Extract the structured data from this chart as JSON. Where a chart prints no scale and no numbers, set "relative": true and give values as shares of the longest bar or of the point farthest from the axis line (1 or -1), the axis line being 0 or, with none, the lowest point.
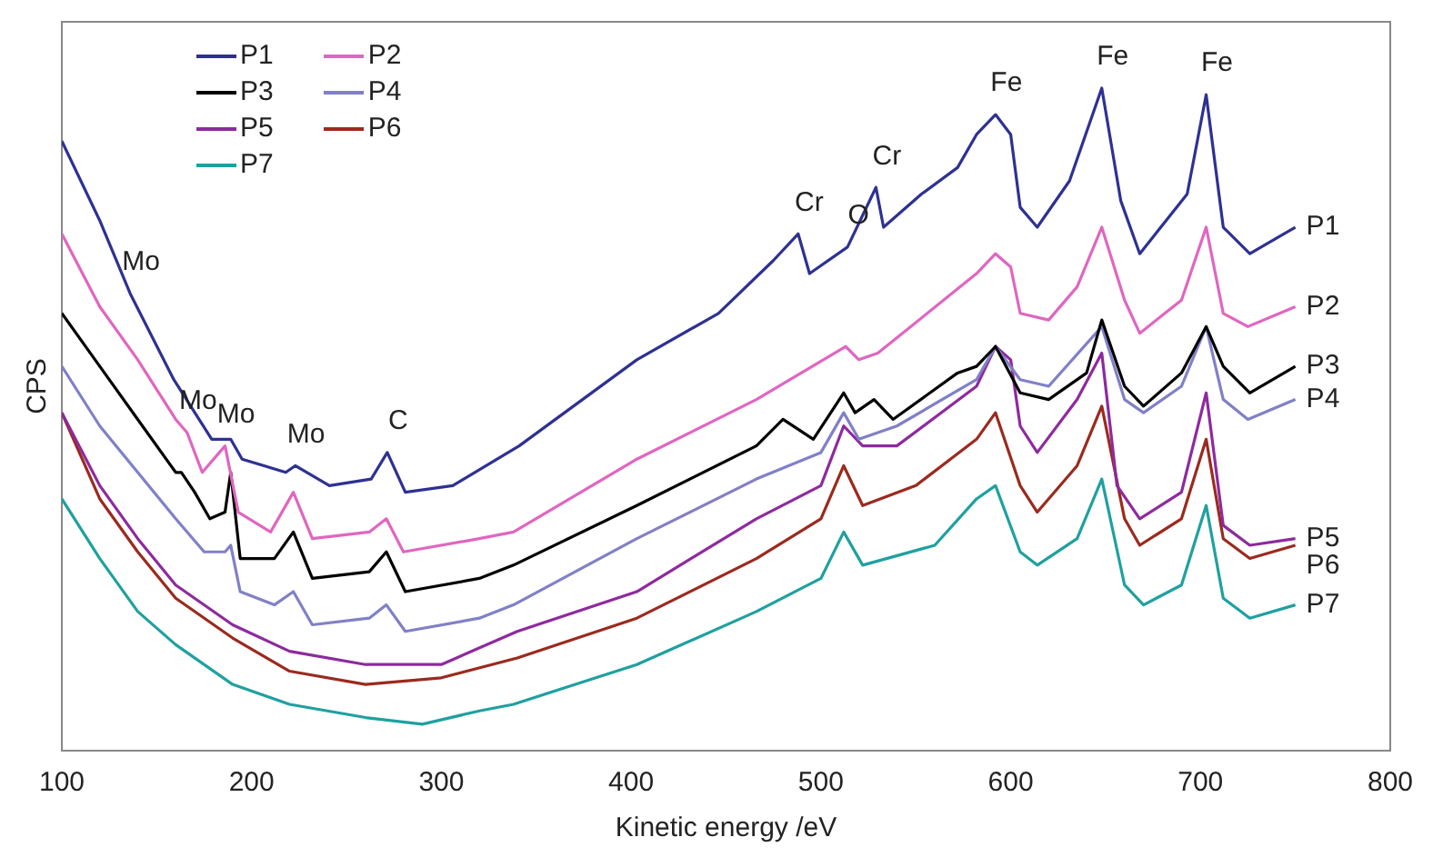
{
  "chart_data": {
    "type": "line",
    "relative": true,
    "xlabel": "Kinetic energy /eV",
    "ylabel": "CPS",
    "xlim": [
      100,
      800
    ],
    "xticks": [
      100,
      200,
      300,
      400,
      500,
      600,
      700,
      800
    ],
    "grid": false,
    "legend": "top left",
    "marker": "none",
    "line_style": "solid",
    "annotations": [
      {
        "text": "Mo",
        "x": 136,
        "y": 0.69
      },
      {
        "text": "Mo",
        "x": 166,
        "y": 0.48
      },
      {
        "text": "Mo",
        "x": 186,
        "y": 0.46
      },
      {
        "text": "Mo",
        "x": 223,
        "y": 0.43
      },
      {
        "text": "C",
        "x": 271.5,
        "y": 0.45
      },
      {
        "text": "Cr",
        "x": 488,
        "y": 0.78
      },
      {
        "text": "O",
        "x": 514,
        "y": 0.76
      },
      {
        "text": "Cr",
        "x": 529,
        "y": 0.85
      },
      {
        "text": "Fe",
        "x": 592,
        "y": 0.96
      },
      {
        "text": "Fe",
        "x": 648,
        "y": 1.0
      },
      {
        "text": "Fe",
        "x": 703,
        "y": 0.99
      }
    ],
    "series": [
      {
        "name": "P1",
        "color": "#2e3192",
        "x": [
          100,
          120,
          136,
          159,
          179,
          189,
          195,
          218,
          223,
          241,
          263,
          271.5,
          281,
          306,
          341,
          403,
          446,
          475,
          488,
          494,
          514,
          529,
          533,
          553,
          572,
          582,
          592,
          600,
          605,
          614,
          631,
          648,
          658,
          668,
          693,
          703,
          712,
          726,
          750
        ],
        "values": [
          0.92,
          0.8,
          0.69,
          0.56,
          0.47,
          0.47,
          0.44,
          0.42,
          0.43,
          0.4,
          0.41,
          0.45,
          0.39,
          0.4,
          0.46,
          0.59,
          0.66,
          0.74,
          0.78,
          0.72,
          0.76,
          0.85,
          0.79,
          0.84,
          0.88,
          0.93,
          0.96,
          0.93,
          0.82,
          0.79,
          0.86,
          1.0,
          0.83,
          0.75,
          0.84,
          0.99,
          0.79,
          0.75,
          0.79
        ]
      },
      {
        "name": "P2",
        "color": "#e066c0",
        "x": [
          100,
          120,
          140,
          160,
          166,
          174,
          186,
          193,
          210,
          222,
          232,
          262,
          271,
          280,
          320,
          338,
          403,
          466,
          513,
          520,
          530,
          582,
          592,
          600,
          605,
          620,
          635,
          648,
          660,
          668,
          690,
          703,
          712,
          725,
          750
        ],
        "values": [
          0.78,
          0.67,
          0.59,
          0.5,
          0.48,
          0.42,
          0.46,
          0.36,
          0.33,
          0.39,
          0.32,
          0.33,
          0.35,
          0.3,
          0.32,
          0.33,
          0.44,
          0.53,
          0.61,
          0.59,
          0.6,
          0.72,
          0.75,
          0.73,
          0.66,
          0.65,
          0.7,
          0.79,
          0.68,
          0.63,
          0.68,
          0.79,
          0.66,
          0.64,
          0.67
        ]
      },
      {
        "name": "P3",
        "color": "#000000",
        "x": [
          100,
          120,
          140,
          160,
          163,
          170,
          178,
          186,
          189,
          194,
          212,
          222,
          232,
          262,
          271,
          281,
          320,
          338,
          403,
          466,
          480,
          496,
          512,
          518,
          528,
          538,
          572,
          582,
          592,
          605,
          620,
          640,
          648,
          660,
          670,
          690,
          703,
          712,
          726,
          750
        ],
        "values": [
          0.66,
          0.58,
          0.5,
          0.42,
          0.42,
          0.39,
          0.35,
          0.36,
          0.42,
          0.29,
          0.29,
          0.33,
          0.26,
          0.27,
          0.3,
          0.24,
          0.26,
          0.28,
          0.37,
          0.46,
          0.5,
          0.47,
          0.54,
          0.51,
          0.53,
          0.5,
          0.57,
          0.58,
          0.61,
          0.54,
          0.53,
          0.57,
          0.65,
          0.55,
          0.52,
          0.57,
          0.64,
          0.58,
          0.54,
          0.58
        ]
      },
      {
        "name": "P4",
        "color": "#8080c8",
        "x": [
          100,
          120,
          140,
          160,
          175,
          186,
          189,
          194,
          212,
          222,
          232,
          262,
          271,
          281,
          320,
          338,
          403,
          466,
          500,
          512,
          520,
          540,
          582,
          592,
          605,
          620,
          648,
          660,
          670,
          690,
          703,
          712,
          725,
          750
        ],
        "values": [
          0.58,
          0.49,
          0.42,
          0.35,
          0.3,
          0.3,
          0.31,
          0.24,
          0.22,
          0.24,
          0.19,
          0.2,
          0.22,
          0.18,
          0.2,
          0.22,
          0.32,
          0.41,
          0.45,
          0.51,
          0.47,
          0.49,
          0.56,
          0.61,
          0.56,
          0.55,
          0.64,
          0.53,
          0.51,
          0.55,
          0.64,
          0.53,
          0.5,
          0.53
        ]
      },
      {
        "name": "P5",
        "color": "#8e2a9e",
        "x": [
          100,
          120,
          140,
          160,
          190,
          220,
          260,
          300,
          340,
          403,
          466,
          500,
          512,
          522,
          540,
          582,
          592,
          600,
          605,
          614,
          635,
          648,
          656,
          668,
          690,
          703,
          712,
          726,
          750
        ],
        "values": [
          0.51,
          0.4,
          0.32,
          0.25,
          0.19,
          0.15,
          0.13,
          0.13,
          0.18,
          0.24,
          0.35,
          0.4,
          0.49,
          0.46,
          0.46,
          0.55,
          0.61,
          0.59,
          0.49,
          0.45,
          0.53,
          0.6,
          0.4,
          0.35,
          0.39,
          0.54,
          0.34,
          0.31,
          0.32
        ]
      },
      {
        "name": "P6",
        "color": "#9b2a1e",
        "x": [
          100,
          120,
          140,
          160,
          190,
          220,
          260,
          300,
          340,
          403,
          466,
          500,
          512,
          522,
          550,
          582,
          592,
          605,
          614,
          635,
          648,
          660,
          668,
          690,
          703,
          712,
          726,
          750
        ],
        "values": [
          0.51,
          0.38,
          0.3,
          0.23,
          0.17,
          0.12,
          0.1,
          0.11,
          0.14,
          0.2,
          0.29,
          0.35,
          0.43,
          0.37,
          0.4,
          0.47,
          0.51,
          0.4,
          0.36,
          0.43,
          0.52,
          0.35,
          0.31,
          0.35,
          0.47,
          0.32,
          0.29,
          0.31
        ]
      },
      {
        "name": "P7",
        "color": "#1fa0a0",
        "x": [
          100,
          120,
          140,
          160,
          190,
          220,
          260,
          290,
          320,
          338,
          403,
          466,
          500,
          512,
          522,
          560,
          582,
          592,
          605,
          614,
          635,
          648,
          660,
          670,
          690,
          703,
          712,
          726,
          750
        ],
        "values": [
          0.38,
          0.29,
          0.21,
          0.16,
          0.1,
          0.07,
          0.05,
          0.04,
          0.06,
          0.07,
          0.13,
          0.21,
          0.26,
          0.33,
          0.28,
          0.31,
          0.38,
          0.4,
          0.3,
          0.28,
          0.32,
          0.41,
          0.25,
          0.22,
          0.25,
          0.37,
          0.23,
          0.2,
          0.22
        ]
      }
    ]
  }
}
